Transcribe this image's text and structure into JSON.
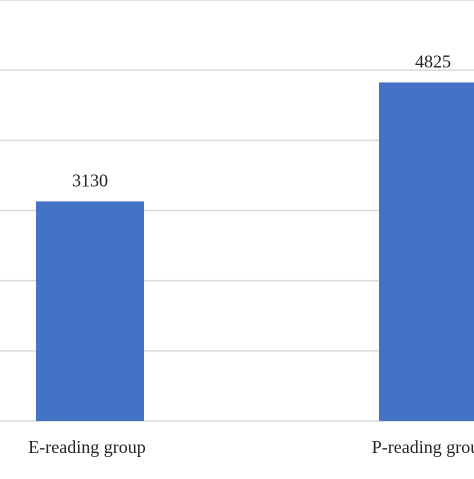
{
  "chart_data": {
    "type": "bar",
    "categories": [
      "E-reading group",
      "P-reading group"
    ],
    "values": [
      3130,
      4825
    ],
    "data_labels": [
      "3130",
      "4825"
    ],
    "title": "",
    "xlabel": "",
    "ylabel": "",
    "ylim": [
      0,
      6000
    ],
    "grid": true,
    "gridline_step": 1000,
    "bar_color": "#4472c4",
    "grid_color": "#d9d9d9",
    "legend": "none"
  }
}
